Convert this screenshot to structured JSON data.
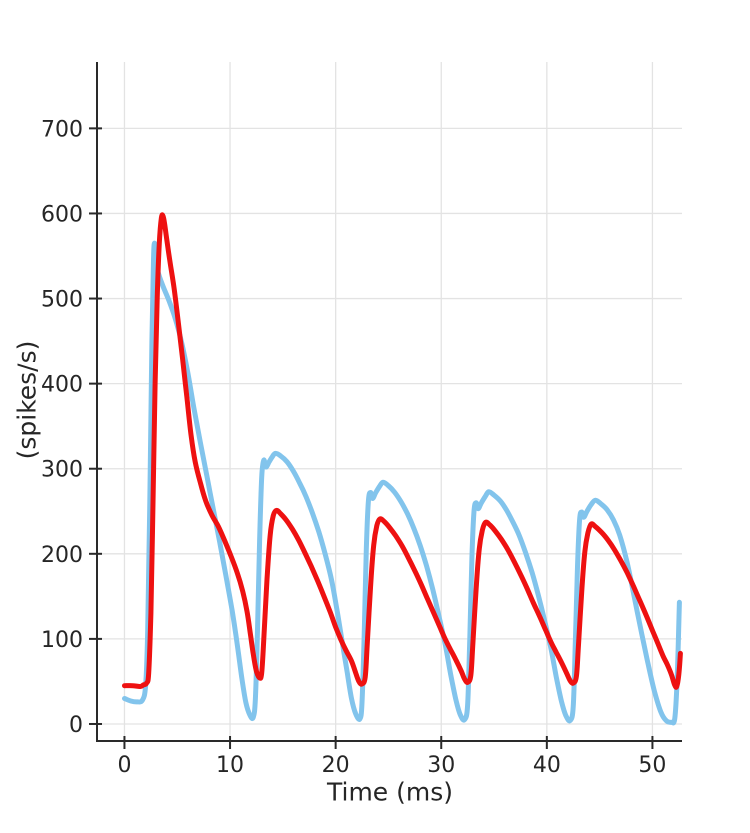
{
  "chart_data": {
    "type": "line",
    "title": "",
    "xlabel": "Time (ms)",
    "ylabel": "(spikes/s)",
    "xlim": [
      -2.6,
      52.8
    ],
    "ylim": [
      -20,
      778
    ],
    "xticks": [
      0,
      10,
      20,
      30,
      40,
      50
    ],
    "yticks": [
      0,
      100,
      200,
      300,
      400,
      500,
      600,
      700
    ],
    "grid": true,
    "legend": "none",
    "colors": {
      "spine": "#2a2a2a",
      "grid": "#e3e3e3",
      "tick_text": "#262626",
      "blue_series": "#82c4ec",
      "red_series": "#ee1111"
    },
    "series": [
      {
        "id": "blue",
        "label": "",
        "color": "#82c4ec",
        "line_width": 5,
        "points": [
          [
            0,
            30
          ],
          [
            0.6,
            27
          ],
          [
            1.2,
            26
          ],
          [
            1.7,
            28
          ],
          [
            2.0,
            45
          ],
          [
            2.2,
            110
          ],
          [
            2.4,
            260
          ],
          [
            2.6,
            450
          ],
          [
            2.75,
            545
          ],
          [
            2.85,
            565
          ],
          [
            3.0,
            550
          ],
          [
            3.15,
            533
          ],
          [
            3.6,
            516
          ],
          [
            4.2,
            498
          ],
          [
            4.8,
            477
          ],
          [
            5.4,
            449
          ],
          [
            6.0,
            413
          ],
          [
            6.6,
            370
          ],
          [
            7.2,
            330
          ],
          [
            7.8,
            292
          ],
          [
            8.4,
            253
          ],
          [
            9.0,
            215
          ],
          [
            9.6,
            175
          ],
          [
            10.2,
            133
          ],
          [
            10.7,
            92
          ],
          [
            11.1,
            55
          ],
          [
            11.5,
            25
          ],
          [
            11.9,
            10
          ],
          [
            12.2,
            8
          ],
          [
            12.4,
            30
          ],
          [
            12.6,
            110
          ],
          [
            12.8,
            215
          ],
          [
            13.0,
            290
          ],
          [
            13.2,
            310
          ],
          [
            13.4,
            302
          ],
          [
            13.7,
            308
          ],
          [
            14.0,
            314
          ],
          [
            14.3,
            318
          ],
          [
            14.8,
            315
          ],
          [
            15.4,
            308
          ],
          [
            16.0,
            297
          ],
          [
            16.6,
            283
          ],
          [
            17.2,
            267
          ],
          [
            17.8,
            248
          ],
          [
            18.4,
            226
          ],
          [
            19.0,
            200
          ],
          [
            19.6,
            170
          ],
          [
            20.1,
            136
          ],
          [
            20.6,
            98
          ],
          [
            21.1,
            60
          ],
          [
            21.5,
            30
          ],
          [
            21.9,
            12
          ],
          [
            22.3,
            6
          ],
          [
            22.5,
            25
          ],
          [
            22.7,
            105
          ],
          [
            22.9,
            205
          ],
          [
            23.1,
            262
          ],
          [
            23.3,
            272
          ],
          [
            23.5,
            265
          ],
          [
            23.8,
            272
          ],
          [
            24.2,
            280
          ],
          [
            24.5,
            284
          ],
          [
            25.0,
            280
          ],
          [
            25.6,
            272
          ],
          [
            26.2,
            261
          ],
          [
            26.8,
            247
          ],
          [
            27.4,
            230
          ],
          [
            28.0,
            210
          ],
          [
            28.6,
            186
          ],
          [
            29.2,
            158
          ],
          [
            29.8,
            126
          ],
          [
            30.4,
            92
          ],
          [
            30.9,
            58
          ],
          [
            31.4,
            28
          ],
          [
            31.8,
            11
          ],
          [
            32.2,
            5
          ],
          [
            32.5,
            22
          ],
          [
            32.7,
            100
          ],
          [
            32.9,
            195
          ],
          [
            33.1,
            250
          ],
          [
            33.3,
            260
          ],
          [
            33.5,
            253
          ],
          [
            33.8,
            260
          ],
          [
            34.2,
            268
          ],
          [
            34.5,
            273
          ],
          [
            35.0,
            269
          ],
          [
            35.6,
            262
          ],
          [
            36.2,
            251
          ],
          [
            36.8,
            237
          ],
          [
            37.4,
            221
          ],
          [
            38.0,
            201
          ],
          [
            38.6,
            178
          ],
          [
            39.2,
            151
          ],
          [
            39.8,
            121
          ],
          [
            40.4,
            88
          ],
          [
            40.9,
            55
          ],
          [
            41.4,
            26
          ],
          [
            41.8,
            10
          ],
          [
            42.2,
            4
          ],
          [
            42.5,
            20
          ],
          [
            42.7,
            95
          ],
          [
            42.9,
            185
          ],
          [
            43.1,
            240
          ],
          [
            43.3,
            249
          ],
          [
            43.5,
            243
          ],
          [
            43.8,
            250
          ],
          [
            44.2,
            258
          ],
          [
            44.6,
            263
          ],
          [
            45.1,
            259
          ],
          [
            45.7,
            252
          ],
          [
            46.3,
            240
          ],
          [
            46.9,
            222
          ],
          [
            47.6,
            190
          ],
          [
            48.3,
            148
          ],
          [
            49.0,
            105
          ],
          [
            49.6,
            70
          ],
          [
            50.2,
            38
          ],
          [
            50.8,
            14
          ],
          [
            51.3,
            4
          ],
          [
            51.8,
            2
          ],
          [
            52.1,
            5
          ],
          [
            52.3,
            40
          ],
          [
            52.45,
            95
          ],
          [
            52.55,
            143
          ]
        ]
      },
      {
        "id": "red",
        "label": "",
        "color": "#ee1111",
        "line_width": 5,
        "points": [
          [
            0,
            45
          ],
          [
            0.8,
            45
          ],
          [
            1.5,
            44
          ],
          [
            1.8,
            46
          ],
          [
            2.1,
            48
          ],
          [
            2.3,
            60
          ],
          [
            2.5,
            130
          ],
          [
            2.7,
            260
          ],
          [
            2.9,
            400
          ],
          [
            3.1,
            500
          ],
          [
            3.3,
            565
          ],
          [
            3.5,
            595
          ],
          [
            3.65,
            597
          ],
          [
            3.8,
            588
          ],
          [
            4.0,
            570
          ],
          [
            4.3,
            544
          ],
          [
            4.7,
            512
          ],
          [
            5.1,
            472
          ],
          [
            5.5,
            430
          ],
          [
            5.9,
            385
          ],
          [
            6.3,
            340
          ],
          [
            6.7,
            308
          ],
          [
            7.2,
            283
          ],
          [
            7.7,
            262
          ],
          [
            8.3,
            245
          ],
          [
            8.9,
            232
          ],
          [
            9.5,
            215
          ],
          [
            10.1,
            197
          ],
          [
            10.7,
            177
          ],
          [
            11.2,
            156
          ],
          [
            11.6,
            133
          ],
          [
            11.9,
            108
          ],
          [
            12.2,
            82
          ],
          [
            12.5,
            62
          ],
          [
            12.8,
            54
          ],
          [
            13.0,
            60
          ],
          [
            13.2,
            100
          ],
          [
            13.5,
            170
          ],
          [
            13.8,
            222
          ],
          [
            14.1,
            245
          ],
          [
            14.4,
            251
          ],
          [
            14.8,
            247
          ],
          [
            15.3,
            240
          ],
          [
            15.9,
            229
          ],
          [
            16.5,
            216
          ],
          [
            17.1,
            201
          ],
          [
            17.7,
            185
          ],
          [
            18.3,
            168
          ],
          [
            18.9,
            150
          ],
          [
            19.5,
            131
          ],
          [
            20.0,
            114
          ],
          [
            20.5,
            99
          ],
          [
            21.0,
            86
          ],
          [
            21.5,
            74
          ],
          [
            21.9,
            60
          ],
          [
            22.2,
            50
          ],
          [
            22.5,
            47
          ],
          [
            22.8,
            55
          ],
          [
            23.0,
            95
          ],
          [
            23.3,
            160
          ],
          [
            23.6,
            210
          ],
          [
            23.9,
            233
          ],
          [
            24.2,
            241
          ],
          [
            24.6,
            238
          ],
          [
            25.1,
            231
          ],
          [
            25.7,
            221
          ],
          [
            26.3,
            209
          ],
          [
            26.9,
            195
          ],
          [
            27.5,
            180
          ],
          [
            28.1,
            164
          ],
          [
            28.7,
            147
          ],
          [
            29.3,
            130
          ],
          [
            29.9,
            113
          ],
          [
            30.4,
            99
          ],
          [
            30.9,
            87
          ],
          [
            31.4,
            75
          ],
          [
            31.9,
            62
          ],
          [
            32.2,
            53
          ],
          [
            32.5,
            49
          ],
          [
            32.8,
            57
          ],
          [
            33.0,
            95
          ],
          [
            33.3,
            158
          ],
          [
            33.6,
            206
          ],
          [
            33.9,
            228
          ],
          [
            34.2,
            237
          ],
          [
            34.6,
            234
          ],
          [
            35.1,
            227
          ],
          [
            35.7,
            217
          ],
          [
            36.3,
            205
          ],
          [
            36.9,
            191
          ],
          [
            37.5,
            176
          ],
          [
            38.1,
            160
          ],
          [
            38.7,
            143
          ],
          [
            39.3,
            127
          ],
          [
            39.9,
            110
          ],
          [
            40.4,
            96
          ],
          [
            40.9,
            84
          ],
          [
            41.4,
            72
          ],
          [
            41.9,
            59
          ],
          [
            42.2,
            51
          ],
          [
            42.5,
            48
          ],
          [
            42.8,
            56
          ],
          [
            43.0,
            93
          ],
          [
            43.3,
            155
          ],
          [
            43.6,
            203
          ],
          [
            43.9,
            225
          ],
          [
            44.2,
            235
          ],
          [
            44.6,
            232
          ],
          [
            45.2,
            225
          ],
          [
            45.8,
            216
          ],
          [
            46.4,
            205
          ],
          [
            47.0,
            192
          ],
          [
            47.6,
            178
          ],
          [
            48.2,
            162
          ],
          [
            48.8,
            145
          ],
          [
            49.4,
            128
          ],
          [
            50.0,
            110
          ],
          [
            50.5,
            95
          ],
          [
            51.0,
            80
          ],
          [
            51.4,
            70
          ],
          [
            51.8,
            58
          ],
          [
            52.1,
            46
          ],
          [
            52.3,
            44
          ],
          [
            52.5,
            58
          ],
          [
            52.65,
            83
          ]
        ]
      }
    ]
  }
}
